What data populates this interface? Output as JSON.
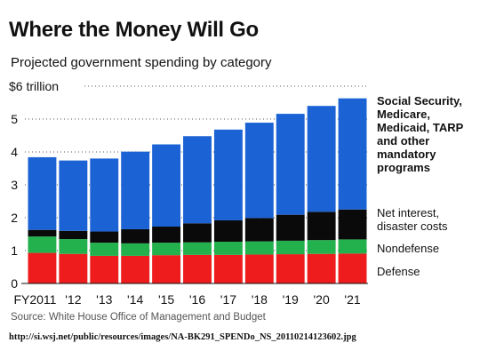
{
  "header": {
    "title": "Where the Money Will Go",
    "subtitle": "Projected government spending by category"
  },
  "footer": {
    "source": "Source: White House Office of Management and Budget",
    "url": "http://si.wsj.net/public/resources/images/NA-BK291_SPENDo_NS_20110214123602.jpg"
  },
  "colors": {
    "defense": "#ee1c1c",
    "nondefense": "#23b14d",
    "net_interest": "#0a0a0a",
    "mandatory": "#1b63d4"
  },
  "chart_data": {
    "type": "bar",
    "stacked": true,
    "categories": [
      "FY2011",
      "'12",
      "'13",
      "'14",
      "'15",
      "'16",
      "'17",
      "'18",
      "'19",
      "'20",
      "'21"
    ],
    "ylim": [
      0,
      6
    ],
    "y_ticks": [
      "0",
      "1",
      "2",
      "3",
      "4",
      "5",
      "$6 trillion"
    ],
    "grid": "dotted horizontal",
    "legend": "right",
    "series": [
      {
        "name": "Defense",
        "color": "#ee1c1c",
        "values": [
          0.93,
          0.9,
          0.84,
          0.84,
          0.86,
          0.87,
          0.87,
          0.88,
          0.89,
          0.9,
          0.91
        ]
      },
      {
        "name": "Nondefense",
        "color": "#23b14d",
        "values": [
          0.5,
          0.45,
          0.4,
          0.38,
          0.38,
          0.38,
          0.4,
          0.4,
          0.41,
          0.42,
          0.43
        ]
      },
      {
        "name": "Net interest, disaster costs",
        "color": "#0a0a0a",
        "values": [
          0.2,
          0.25,
          0.34,
          0.43,
          0.49,
          0.58,
          0.65,
          0.71,
          0.79,
          0.86,
          0.91
        ]
      },
      {
        "name": "Social Security, Medicare, Medicaid, TARP and other mandatory programs",
        "color": "#1b63d4",
        "values": [
          2.21,
          2.14,
          2.22,
          2.36,
          2.5,
          2.65,
          2.76,
          2.9,
          3.07,
          3.22,
          3.38
        ]
      }
    ]
  }
}
